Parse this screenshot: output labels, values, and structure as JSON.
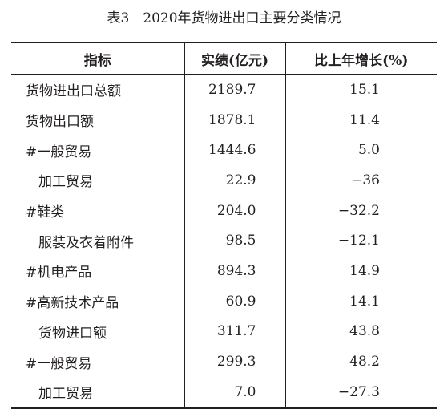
{
  "header": {
    "title": "表3　2020年货物进出口主要分类情况"
  },
  "table": {
    "columns": [
      "指标",
      "实绩(亿元)",
      "比上年增长(%)"
    ],
    "rows": [
      [
        "货物进出口总额",
        "2189.7",
        "15.1"
      ],
      [
        "货物出口额",
        "1878.1",
        "11.4"
      ],
      [
        "#一般贸易",
        "1444.6",
        "5.0"
      ],
      [
        "加工贸易",
        "22.9",
        "−36"
      ],
      [
        "#鞋类",
        "204.0",
        "−32.2"
      ],
      [
        "服装及衣着附件",
        "98.5",
        "−12.1"
      ],
      [
        "#机电产品",
        "894.3",
        "14.9"
      ],
      [
        "#高新技术产品",
        "60.9",
        "14.1"
      ],
      [
        "货物进口额",
        "311.7",
        "43.8"
      ],
      [
        "#一般贸易",
        "299.3",
        "48.2"
      ],
      [
        "加工贸易",
        "7.0",
        "−27.3"
      ]
    ]
  }
}
